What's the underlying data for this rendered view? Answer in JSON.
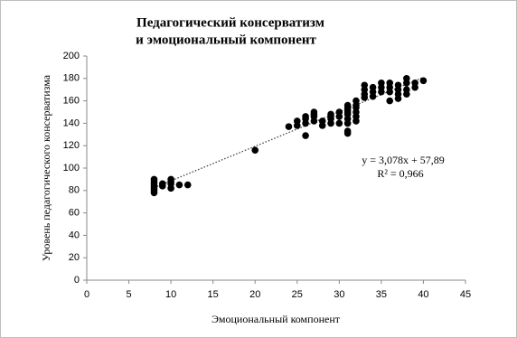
{
  "chart_data": {
    "type": "scatter",
    "title": [
      "Педагогический консерватизм",
      "и эмоциональный компонент"
    ],
    "x_label": "Эмоциональный компонент",
    "y_label": "Уровень педагогического консерватизма",
    "annotations": [
      "y = 3,078x + 57,89",
      "R² = 0,966"
    ],
    "trendline": {
      "slope": 3.078,
      "intercept": 57.89,
      "r2": 0.966,
      "style": "dotted"
    },
    "color": "#000000",
    "x": [
      8,
      8,
      8,
      8,
      8,
      8,
      8,
      9,
      9,
      10,
      10,
      10,
      10,
      11,
      12,
      20,
      24,
      25,
      25,
      26,
      26,
      26,
      26,
      27,
      27,
      27,
      27,
      28,
      28,
      29,
      29,
      29,
      29,
      30,
      30,
      30,
      31,
      31,
      31,
      31,
      31,
      31,
      31,
      31,
      31,
      32,
      32,
      32,
      32,
      32,
      32,
      33,
      33,
      33,
      33,
      34,
      34,
      34,
      35,
      35,
      35,
      36,
      36,
      36,
      36,
      37,
      37,
      37,
      37,
      38,
      38,
      38,
      38,
      39,
      39,
      40
    ],
    "values": [
      78,
      80,
      82,
      84,
      86,
      88,
      90,
      84,
      86,
      82,
      86,
      88,
      90,
      85,
      85,
      116,
      137,
      138,
      142,
      129,
      140,
      144,
      146,
      142,
      146,
      148,
      150,
      138,
      142,
      140,
      144,
      146,
      148,
      140,
      146,
      150,
      131,
      133,
      140,
      144,
      148,
      150,
      152,
      154,
      156,
      142,
      146,
      150,
      154,
      156,
      160,
      163,
      166,
      170,
      174,
      164,
      168,
      172,
      168,
      172,
      176,
      160,
      168,
      172,
      176,
      162,
      166,
      170,
      174,
      166,
      170,
      176,
      180,
      172,
      176,
      178
    ],
    "xlim": [
      0,
      45
    ],
    "xticks": [
      0,
      5,
      10,
      15,
      20,
      25,
      30,
      35,
      40,
      45
    ],
    "ylim": [
      0,
      200
    ],
    "yticks": [
      0,
      20,
      40,
      60,
      80,
      100,
      120,
      140,
      160,
      180,
      200
    ],
    "grid": false
  }
}
